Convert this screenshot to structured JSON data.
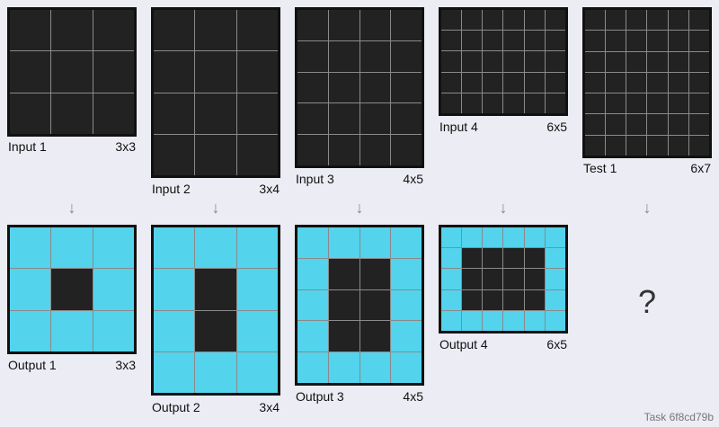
{
  "colors": {
    "black": "#222222",
    "cyan": "#53d3ec",
    "background": "#ececf4"
  },
  "pairs": [
    {
      "input": {
        "label": "Input 1",
        "size": "3x3",
        "grid": [
          [
            0,
            0,
            0
          ],
          [
            0,
            0,
            0
          ],
          [
            0,
            0,
            0
          ]
        ]
      },
      "output": {
        "label": "Output 1",
        "size": "3x3",
        "grid": [
          [
            8,
            8,
            8
          ],
          [
            8,
            0,
            8
          ],
          [
            8,
            8,
            8
          ]
        ]
      }
    },
    {
      "input": {
        "label": "Input 2",
        "size": "3x4",
        "grid": [
          [
            0,
            0,
            0
          ],
          [
            0,
            0,
            0
          ],
          [
            0,
            0,
            0
          ],
          [
            0,
            0,
            0
          ]
        ]
      },
      "output": {
        "label": "Output 2",
        "size": "3x4",
        "grid": [
          [
            8,
            8,
            8
          ],
          [
            8,
            0,
            8
          ],
          [
            8,
            0,
            8
          ],
          [
            8,
            8,
            8
          ]
        ]
      }
    },
    {
      "input": {
        "label": "Input 3",
        "size": "4x5",
        "grid": [
          [
            0,
            0,
            0,
            0
          ],
          [
            0,
            0,
            0,
            0
          ],
          [
            0,
            0,
            0,
            0
          ],
          [
            0,
            0,
            0,
            0
          ],
          [
            0,
            0,
            0,
            0
          ]
        ]
      },
      "output": {
        "label": "Output 3",
        "size": "4x5",
        "grid": [
          [
            8,
            8,
            8,
            8
          ],
          [
            8,
            0,
            0,
            8
          ],
          [
            8,
            0,
            0,
            8
          ],
          [
            8,
            0,
            0,
            8
          ],
          [
            8,
            8,
            8,
            8
          ]
        ]
      }
    },
    {
      "input": {
        "label": "Input 4",
        "size": "6x5",
        "grid": [
          [
            0,
            0,
            0,
            0,
            0,
            0
          ],
          [
            0,
            0,
            0,
            0,
            0,
            0
          ],
          [
            0,
            0,
            0,
            0,
            0,
            0
          ],
          [
            0,
            0,
            0,
            0,
            0,
            0
          ],
          [
            0,
            0,
            0,
            0,
            0,
            0
          ]
        ]
      },
      "output": {
        "label": "Output 4",
        "size": "6x5",
        "grid": [
          [
            8,
            8,
            8,
            8,
            8,
            8
          ],
          [
            8,
            0,
            0,
            0,
            0,
            8
          ],
          [
            8,
            0,
            0,
            0,
            0,
            8
          ],
          [
            8,
            0,
            0,
            0,
            0,
            8
          ],
          [
            8,
            8,
            8,
            8,
            8,
            8
          ]
        ]
      }
    }
  ],
  "test": {
    "label": "Test 1",
    "size": "6x7",
    "grid": [
      [
        0,
        0,
        0,
        0,
        0,
        0
      ],
      [
        0,
        0,
        0,
        0,
        0,
        0
      ],
      [
        0,
        0,
        0,
        0,
        0,
        0
      ],
      [
        0,
        0,
        0,
        0,
        0,
        0
      ],
      [
        0,
        0,
        0,
        0,
        0,
        0
      ],
      [
        0,
        0,
        0,
        0,
        0,
        0
      ],
      [
        0,
        0,
        0,
        0,
        0,
        0
      ]
    ],
    "answer_placeholder": "?"
  },
  "arrow_glyph": "↓",
  "task_label": "Task 6f8cd79b"
}
